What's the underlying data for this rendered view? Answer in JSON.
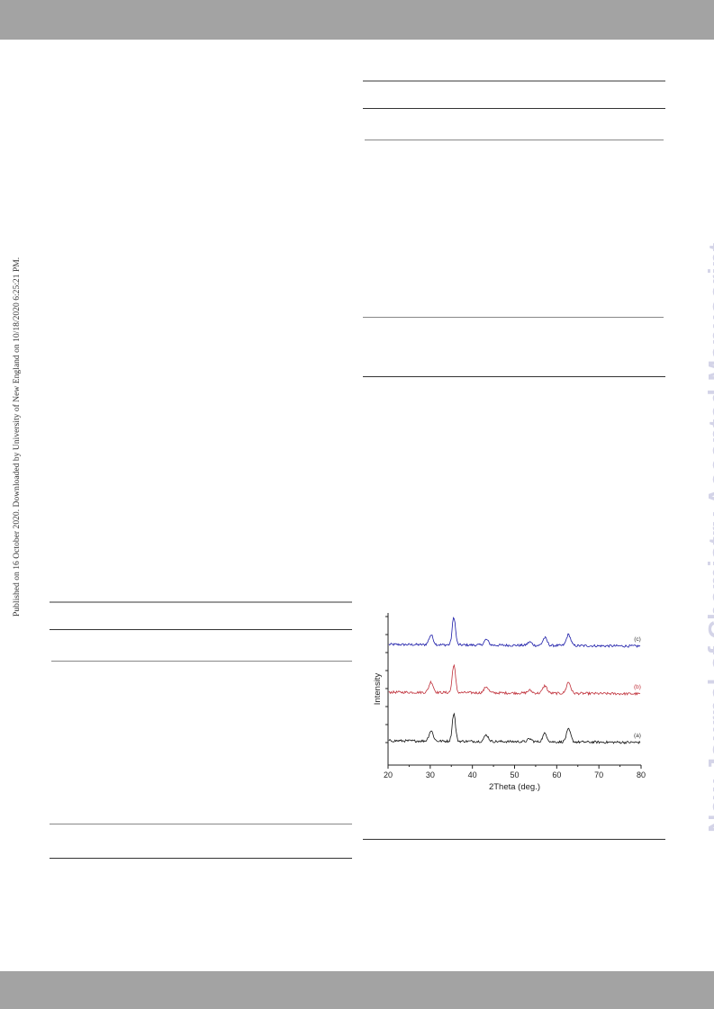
{
  "header_band": {
    "color": "#a3a3a3"
  },
  "footer_band": {
    "color": "#a3a3a3"
  },
  "side_note": "Published on 16 October 2020. Downloaded by University of New England on 10/18/2020 6:25:21 PM.",
  "watermark": "New Journal of Chemistry Accepted Manuscript",
  "chart_data": {
    "type": "line",
    "xlabel": "2Theta (deg.)",
    "ylabel": "Intensity",
    "xlim": [
      20,
      80
    ],
    "x_ticks": [
      "20",
      "30",
      "40",
      "50",
      "60",
      "70",
      "80"
    ],
    "grid": false,
    "series": [
      {
        "name": "(c)",
        "color": "#1a1aa8",
        "peaks": [
          [
            30.2,
            0.35
          ],
          [
            35.6,
            1.0
          ],
          [
            43.3,
            0.2
          ],
          [
            53.6,
            0.12
          ],
          [
            57.2,
            0.28
          ],
          [
            62.8,
            0.4
          ]
        ]
      },
      {
        "name": "(b)",
        "color": "#c0303a",
        "peaks": [
          [
            30.2,
            0.38
          ],
          [
            35.6,
            1.0
          ],
          [
            43.3,
            0.22
          ],
          [
            53.6,
            0.1
          ],
          [
            57.2,
            0.27
          ],
          [
            62.8,
            0.4
          ]
        ]
      },
      {
        "name": "(a)",
        "color": "#111111",
        "peaks": [
          [
            30.2,
            0.37
          ],
          [
            35.6,
            1.0
          ],
          [
            43.3,
            0.23
          ],
          [
            53.6,
            0.1
          ],
          [
            57.2,
            0.3
          ],
          [
            62.8,
            0.45
          ]
        ]
      }
    ]
  }
}
